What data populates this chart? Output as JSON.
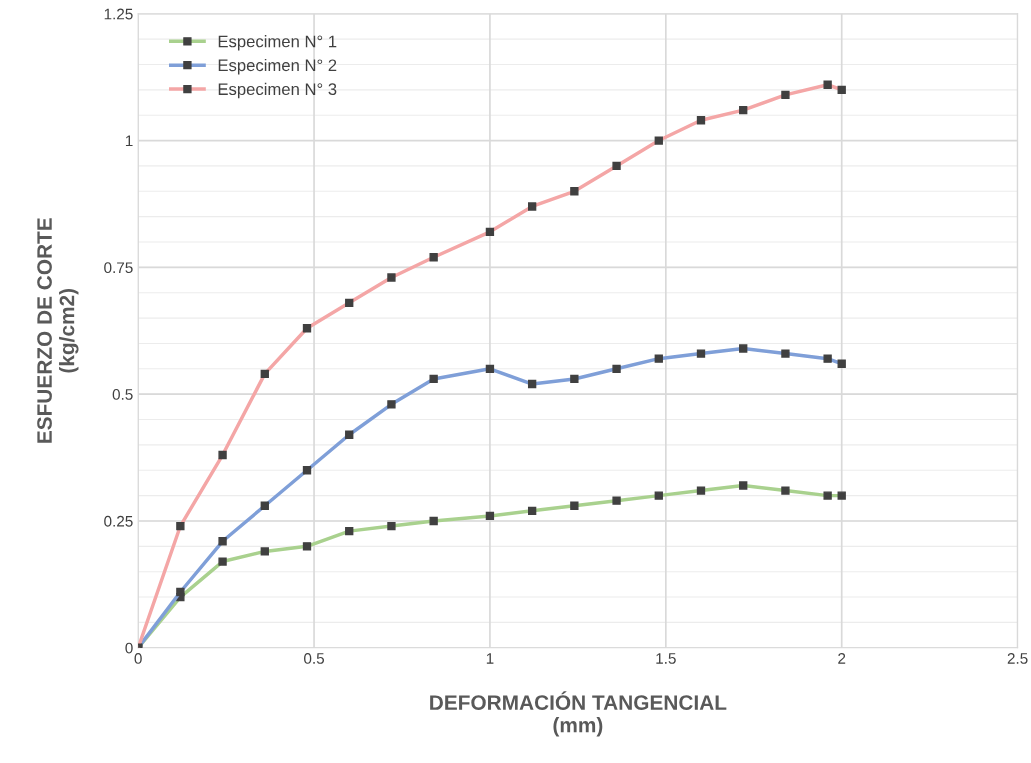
{
  "chart_data": {
    "type": "line",
    "xlabel": "DEFORMACIÓN TANGENCIAL\n(mm)",
    "ylabel": "ESFUERZO DE CORTE\n(kg/cm2)",
    "x": [
      0,
      0.12,
      0.24,
      0.36,
      0.48,
      0.6,
      0.72,
      0.84,
      1.0,
      1.12,
      1.24,
      1.36,
      1.48,
      1.6,
      1.72,
      1.84,
      1.96,
      2.0
    ],
    "series": [
      {
        "name": "Especimen N° 1",
        "color": "#a9d18e",
        "values": [
          0,
          0.1,
          0.17,
          0.19,
          0.2,
          0.23,
          0.24,
          0.25,
          0.26,
          0.27,
          0.28,
          0.29,
          0.3,
          0.31,
          0.32,
          0.31,
          0.3,
          0.3
        ]
      },
      {
        "name": "Especimen N° 2",
        "color": "#7f9fd8",
        "values": [
          0,
          0.11,
          0.21,
          0.28,
          0.35,
          0.42,
          0.48,
          0.53,
          0.55,
          0.52,
          0.53,
          0.55,
          0.57,
          0.58,
          0.59,
          0.58,
          0.57,
          0.56
        ]
      },
      {
        "name": "Especimen N° 3",
        "color": "#f4a6a6",
        "values": [
          0,
          0.24,
          0.38,
          0.54,
          0.63,
          0.68,
          0.73,
          0.77,
          0.82,
          0.87,
          0.9,
          0.95,
          1.0,
          1.04,
          1.06,
          1.09,
          1.11,
          1.1
        ]
      }
    ],
    "xlim": [
      0,
      2.5
    ],
    "xticks": [
      0,
      0.5,
      1,
      1.5,
      2,
      2.5
    ],
    "ylim": [
      0,
      1.25
    ],
    "yticks": [
      0,
      0.25,
      0.5,
      0.75,
      1,
      1.25
    ],
    "grid": true,
    "legend": "top left",
    "marker": "square",
    "line_style": "solid"
  }
}
